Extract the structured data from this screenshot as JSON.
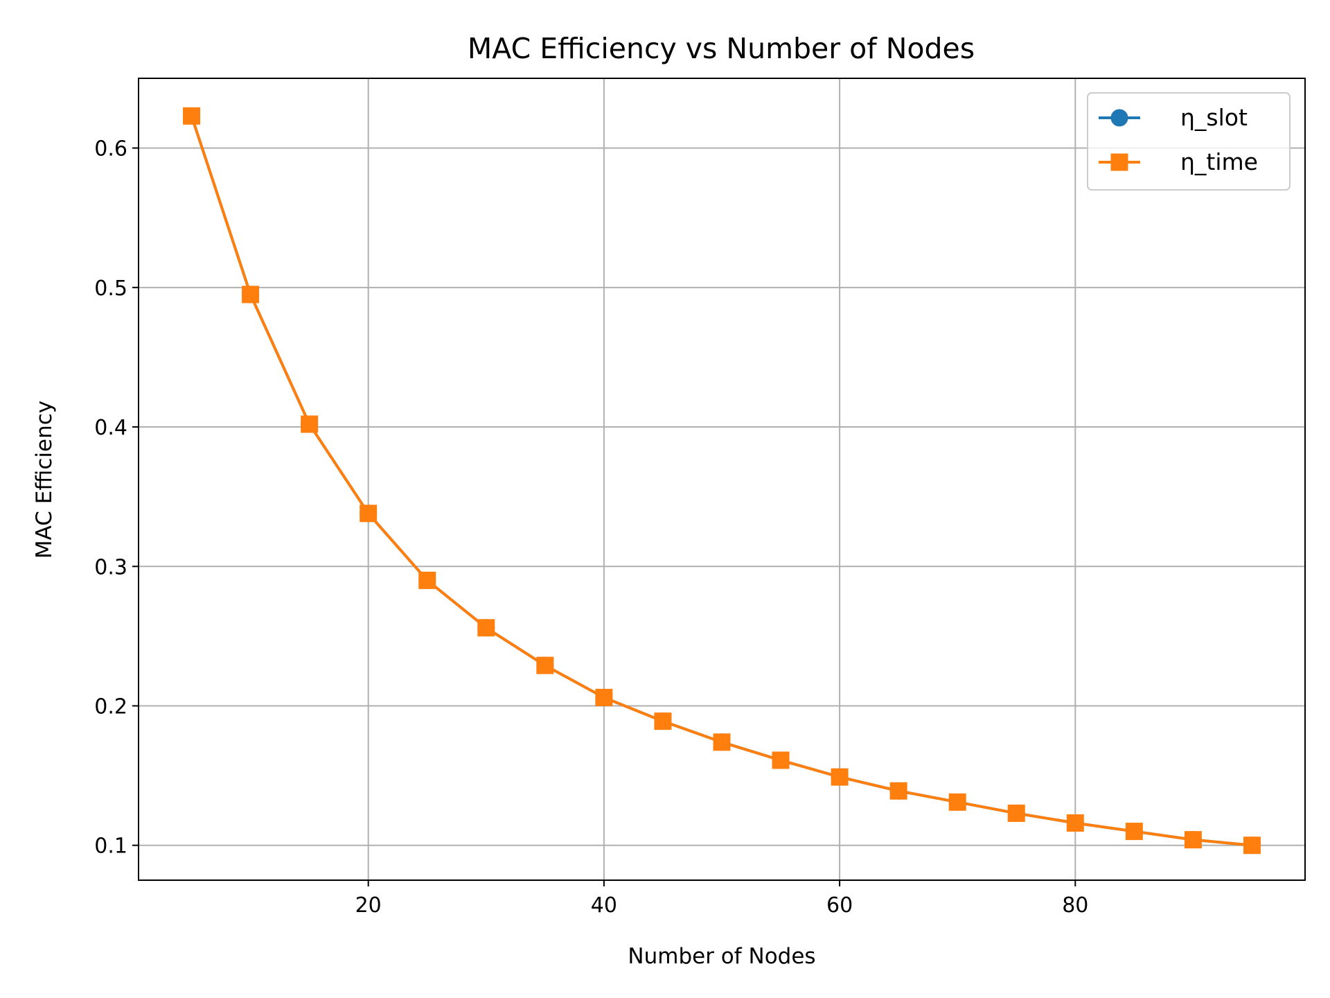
{
  "chart_data": {
    "type": "line",
    "title": "MAC Efficiency vs Number of Nodes",
    "xlabel": "Number of Nodes",
    "ylabel": "MAC Efficiency",
    "xlim": [
      0.5,
      99.5
    ],
    "ylim": [
      0.075,
      0.65
    ],
    "xticks": [
      20,
      40,
      60,
      80
    ],
    "yticks": [
      0.1,
      0.2,
      0.3,
      0.4,
      0.5,
      0.6
    ],
    "grid": true,
    "legend_position": "top-right",
    "x": [
      5,
      10,
      15,
      20,
      25,
      30,
      35,
      40,
      45,
      50,
      55,
      60,
      65,
      70,
      75,
      80,
      85,
      90,
      95
    ],
    "series": [
      {
        "name": "η_slot",
        "color": "#1f77b4",
        "marker": "circle",
        "values": [
          0.623,
          0.495,
          0.402,
          0.338,
          0.29,
          0.256,
          0.229,
          0.206,
          0.189,
          0.174,
          0.161,
          0.149,
          0.139,
          0.131,
          0.123,
          0.116,
          0.11,
          0.104,
          0.1
        ]
      },
      {
        "name": "η_time",
        "color": "#ff7f0e",
        "marker": "square",
        "values": [
          0.623,
          0.495,
          0.402,
          0.338,
          0.29,
          0.256,
          0.229,
          0.206,
          0.189,
          0.174,
          0.161,
          0.149,
          0.139,
          0.131,
          0.123,
          0.116,
          0.11,
          0.104,
          0.1
        ]
      }
    ]
  }
}
